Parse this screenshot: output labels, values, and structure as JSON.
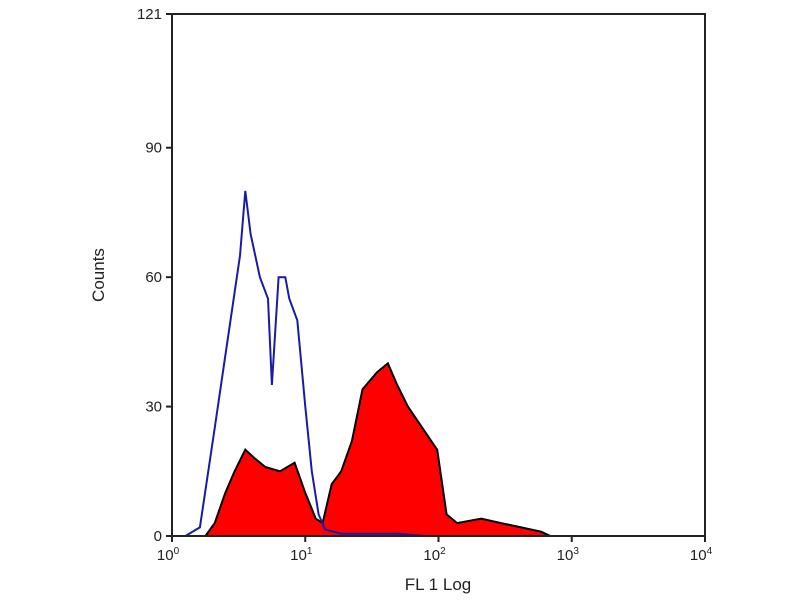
{
  "chart_data": {
    "type": "area",
    "xlabel": "FL 1 Log",
    "ylabel": "Counts",
    "x_scale": "log",
    "xlim": [
      1,
      10000
    ],
    "ylim": [
      0,
      121
    ],
    "x_ticks": [
      {
        "base": "10",
        "exp": "0"
      },
      {
        "base": "10",
        "exp": "1"
      },
      {
        "base": "10",
        "exp": "2"
      },
      {
        "base": "10",
        "exp": "3"
      },
      {
        "base": "10",
        "exp": "4"
      }
    ],
    "y_ticks": [
      "0",
      "30",
      "60",
      "90",
      "121"
    ],
    "grid": false,
    "series": [
      {
        "style": "outline",
        "color": "#1a1aa8",
        "x": [
          1.26,
          1.62,
          2.09,
          2.75,
          3.24,
          3.55,
          3.89,
          4.57,
          5.25,
          5.62,
          6.31,
          7.08,
          7.59,
          8.71,
          10.0,
          11.2,
          12.6,
          14.1,
          18.6,
          30,
          50,
          79
        ],
        "y": [
          0,
          2,
          25,
          50,
          65,
          80,
          70,
          60,
          55,
          35,
          60,
          60,
          55,
          50,
          30,
          15,
          5,
          1.5,
          0.5,
          0.5,
          0.5,
          0
        ]
      },
      {
        "style": "filled",
        "color": "#ff0000",
        "outline_color": "#000000",
        "x": [
          1.78,
          2.09,
          2.51,
          2.95,
          3.55,
          4.17,
          5.01,
          6.46,
          8.32,
          10.0,
          12.0,
          13.5,
          15.8,
          18.6,
          22.4,
          26.9,
          34.7,
          41.7,
          49.0,
          58.9,
          75.9,
          97.7,
          115,
          138,
          209,
          295,
          417,
          589,
          692
        ],
        "y": [
          0,
          3,
          10,
          15,
          20,
          18,
          16,
          15,
          17,
          10,
          4,
          3,
          12,
          15,
          22,
          34,
          38,
          40,
          35,
          30,
          25,
          20,
          5,
          3,
          4,
          3,
          2,
          1,
          0
        ]
      }
    ]
  }
}
